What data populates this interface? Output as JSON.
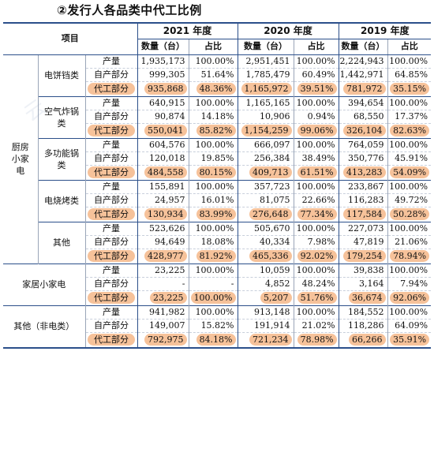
{
  "title": "②发行人各品类中代工比例",
  "header": {
    "item_label": "项目",
    "years": [
      "2021 年度",
      "2020 年度",
      "2019 年度"
    ],
    "qty_label": "数量（台）",
    "ratio_label": "占比"
  },
  "row_labels": {
    "output": "产量",
    "self": "自产部分",
    "oem": "代工部分"
  },
  "groups": [
    {
      "name": "厨房小家电",
      "subs": [
        {
          "name": "电饼铛类",
          "rows": [
            [
              "1,935,173",
              "100.00%",
              "2,951,451",
              "100.00%",
              "2,224,943",
              "100.00%"
            ],
            [
              "999,305",
              "51.64%",
              "1,785,479",
              "60.49%",
              "1,442,971",
              "64.85%"
            ],
            [
              "935,868",
              "48.36%",
              "1,165,972",
              "39.51%",
              "781,972",
              "35.15%"
            ]
          ]
        },
        {
          "name": "空气炸锅类",
          "rows": [
            [
              "640,915",
              "100.00%",
              "1,165,165",
              "100.00%",
              "394,654",
              "100.00%"
            ],
            [
              "90,874",
              "14.18%",
              "10,906",
              "0.94%",
              "68,550",
              "17.37%"
            ],
            [
              "550,041",
              "85.82%",
              "1,154,259",
              "99.06%",
              "326,104",
              "82.63%"
            ]
          ]
        },
        {
          "name": "多功能锅类",
          "rows": [
            [
              "604,576",
              "100.00%",
              "666,097",
              "100.00%",
              "764,059",
              "100.00%"
            ],
            [
              "120,018",
              "19.85%",
              "256,384",
              "38.49%",
              "350,776",
              "45.91%"
            ],
            [
              "484,558",
              "80.15%",
              "409,713",
              "61.51%",
              "413,283",
              "54.09%"
            ]
          ]
        },
        {
          "name": "电烧烤类",
          "rows": [
            [
              "155,891",
              "100.00%",
              "357,723",
              "100.00%",
              "233,867",
              "100.00%"
            ],
            [
              "24,957",
              "16.01%",
              "81,075",
              "22.66%",
              "116,283",
              "49.72%"
            ],
            [
              "130,934",
              "83.99%",
              "276,648",
              "77.34%",
              "117,584",
              "50.28%"
            ]
          ]
        },
        {
          "name": "其他",
          "rows": [
            [
              "523,626",
              "100.00%",
              "505,670",
              "100.00%",
              "227,073",
              "100.00%"
            ],
            [
              "94,649",
              "18.08%",
              "40,334",
              "7.98%",
              "47,819",
              "21.06%"
            ],
            [
              "428,977",
              "81.92%",
              "465,336",
              "92.02%",
              "179,254",
              "78.94%"
            ]
          ]
        }
      ]
    },
    {
      "name": "家居小家电",
      "rows": [
        [
          "23,225",
          "100.00%",
          "10,059",
          "100.00%",
          "39,838",
          "100.00%"
        ],
        [
          "-",
          "-",
          "4,852",
          "48.24%",
          "3,164",
          "7.94%"
        ],
        [
          "23,225",
          "100.00%",
          "5,207",
          "51.76%",
          "36,674",
          "92.06%"
        ]
      ]
    },
    {
      "name": "其他（非电类）",
      "rows": [
        [
          "941,982",
          "100.00%",
          "913,148",
          "100.00%",
          "184,552",
          "100.00%"
        ],
        [
          "149,007",
          "15.82%",
          "191,914",
          "21.02%",
          "118,286",
          "64.09%"
        ],
        [
          "792,975",
          "84.18%",
          "721,234",
          "78.98%",
          "66,266",
          "35.91%"
        ]
      ]
    }
  ]
}
